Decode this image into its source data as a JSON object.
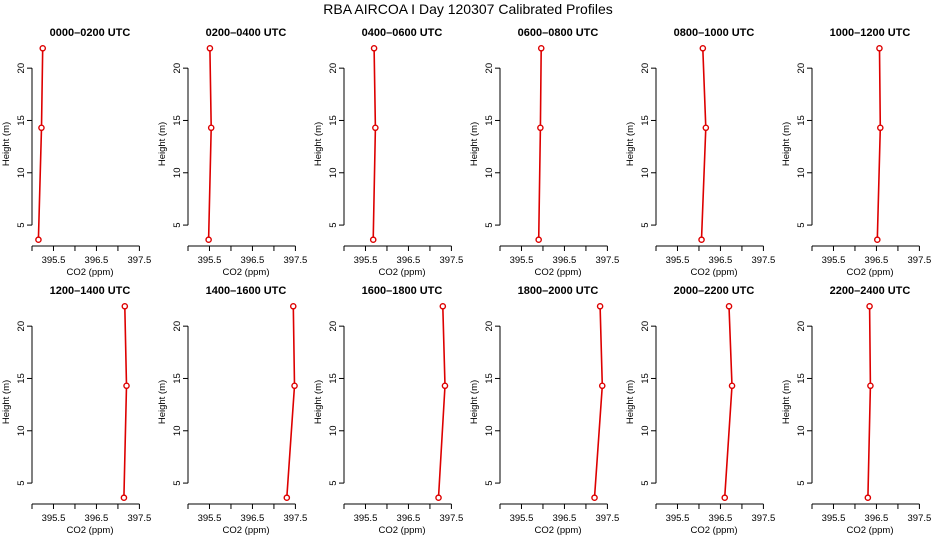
{
  "figure": {
    "title": "RBA AIRCOA I  Day 120307  Calibrated Profiles"
  },
  "chart_data": [
    {
      "type": "line",
      "title": "0000–0200 UTC",
      "xlabel": "CO2 (ppm)",
      "ylabel": "Height (m)",
      "xlim": [
        395.0,
        397.7
      ],
      "ylim": [
        3,
        22.5
      ],
      "xticks": [
        "395.5",
        "396.5",
        "397.5"
      ],
      "yticks": [
        "5",
        "10",
        "15",
        "20"
      ],
      "series": [
        {
          "points": [
            {
              "x": 395.15,
              "y": 3.6
            },
            {
              "x": 395.22,
              "y": 14.3
            },
            {
              "x": 395.25,
              "y": 21.9
            }
          ]
        }
      ]
    },
    {
      "type": "line",
      "title": "0200–0400 UTC",
      "xlabel": "CO2 (ppm)",
      "ylabel": "Height (m)",
      "xlim": [
        395.0,
        397.7
      ],
      "ylim": [
        3,
        22.5
      ],
      "xticks": [
        "395.5",
        "396.5",
        "397.5"
      ],
      "yticks": [
        "5",
        "10",
        "15",
        "20"
      ],
      "series": [
        {
          "points": [
            {
              "x": 395.48,
              "y": 3.6
            },
            {
              "x": 395.54,
              "y": 14.3
            },
            {
              "x": 395.51,
              "y": 21.9
            }
          ]
        }
      ]
    },
    {
      "type": "line",
      "title": "0400–0600 UTC",
      "xlabel": "CO2 (ppm)",
      "ylabel": "Height (m)",
      "xlim": [
        395.0,
        397.7
      ],
      "ylim": [
        3,
        22.5
      ],
      "xticks": [
        "395.5",
        "396.5",
        "397.5"
      ],
      "yticks": [
        "5",
        "10",
        "15",
        "20"
      ],
      "series": [
        {
          "points": [
            {
              "x": 395.68,
              "y": 3.6
            },
            {
              "x": 395.73,
              "y": 14.3
            },
            {
              "x": 395.7,
              "y": 21.9
            }
          ]
        }
      ]
    },
    {
      "type": "line",
      "title": "0600–0800 UTC",
      "xlabel": "CO2 (ppm)",
      "ylabel": "Height (m)",
      "xlim": [
        395.0,
        397.7
      ],
      "ylim": [
        3,
        22.5
      ],
      "xticks": [
        "395.5",
        "396.5",
        "397.5"
      ],
      "yticks": [
        "5",
        "10",
        "15",
        "20"
      ],
      "series": [
        {
          "points": [
            {
              "x": 395.9,
              "y": 3.6
            },
            {
              "x": 395.94,
              "y": 14.3
            },
            {
              "x": 395.96,
              "y": 21.9
            }
          ]
        }
      ]
    },
    {
      "type": "line",
      "title": "0800–1000 UTC",
      "xlabel": "CO2 (ppm)",
      "ylabel": "Height (m)",
      "xlim": [
        395.0,
        397.7
      ],
      "ylim": [
        3,
        22.5
      ],
      "xticks": [
        "395.5",
        "396.5",
        "397.5"
      ],
      "yticks": [
        "5",
        "10",
        "15",
        "20"
      ],
      "series": [
        {
          "points": [
            {
              "x": 396.06,
              "y": 3.6
            },
            {
              "x": 396.16,
              "y": 14.3
            },
            {
              "x": 396.09,
              "y": 21.9
            }
          ]
        }
      ]
    },
    {
      "type": "line",
      "title": "1000–1200 UTC",
      "xlabel": "CO2 (ppm)",
      "ylabel": "Height (m)",
      "xlim": [
        395.0,
        397.7
      ],
      "ylim": [
        3,
        22.5
      ],
      "xticks": [
        "395.5",
        "396.5",
        "397.5"
      ],
      "yticks": [
        "5",
        "10",
        "15",
        "20"
      ],
      "series": [
        {
          "points": [
            {
              "x": 396.52,
              "y": 3.6
            },
            {
              "x": 396.59,
              "y": 14.3
            },
            {
              "x": 396.57,
              "y": 21.9
            }
          ]
        }
      ]
    },
    {
      "type": "line",
      "title": "1200–1400 UTC",
      "xlabel": "CO2 (ppm)",
      "ylabel": "Height (m)",
      "xlim": [
        395.0,
        397.7
      ],
      "ylim": [
        3,
        22.5
      ],
      "xticks": [
        "395.5",
        "396.5",
        "397.5"
      ],
      "yticks": [
        "5",
        "10",
        "15",
        "20"
      ],
      "series": [
        {
          "points": [
            {
              "x": 397.14,
              "y": 3.6
            },
            {
              "x": 397.2,
              "y": 14.3
            },
            {
              "x": 397.16,
              "y": 21.9
            }
          ]
        }
      ]
    },
    {
      "type": "line",
      "title": "1400–1600 UTC",
      "xlabel": "CO2 (ppm)",
      "ylabel": "Height (m)",
      "xlim": [
        395.0,
        397.7
      ],
      "ylim": [
        3,
        22.5
      ],
      "xticks": [
        "395.5",
        "396.5",
        "397.5"
      ],
      "yticks": [
        "5",
        "10",
        "15",
        "20"
      ],
      "series": [
        {
          "points": [
            {
              "x": 397.3,
              "y": 3.6
            },
            {
              "x": 397.48,
              "y": 14.3
            },
            {
              "x": 397.45,
              "y": 21.9
            }
          ]
        }
      ]
    },
    {
      "type": "line",
      "title": "1600–1800 UTC",
      "xlabel": "CO2 (ppm)",
      "ylabel": "Height (m)",
      "xlim": [
        395.0,
        397.7
      ],
      "ylim": [
        3,
        22.5
      ],
      "xticks": [
        "395.5",
        "396.5",
        "397.5"
      ],
      "yticks": [
        "5",
        "10",
        "15",
        "20"
      ],
      "series": [
        {
          "points": [
            {
              "x": 397.2,
              "y": 3.6
            },
            {
              "x": 397.35,
              "y": 14.3
            },
            {
              "x": 397.3,
              "y": 21.9
            }
          ]
        }
      ]
    },
    {
      "type": "line",
      "title": "1800–2000 UTC",
      "xlabel": "CO2 (ppm)",
      "ylabel": "Height (m)",
      "xlim": [
        395.0,
        397.7
      ],
      "ylim": [
        3,
        22.5
      ],
      "xticks": [
        "395.5",
        "396.5",
        "397.5"
      ],
      "yticks": [
        "5",
        "10",
        "15",
        "20"
      ],
      "series": [
        {
          "points": [
            {
              "x": 397.2,
              "y": 3.6
            },
            {
              "x": 397.38,
              "y": 14.3
            },
            {
              "x": 397.33,
              "y": 21.9
            }
          ]
        }
      ]
    },
    {
      "type": "line",
      "title": "2000–2200 UTC",
      "xlabel": "CO2 (ppm)",
      "ylabel": "Height (m)",
      "xlim": [
        395.0,
        397.7
      ],
      "ylim": [
        3,
        22.5
      ],
      "xticks": [
        "395.5",
        "396.5",
        "397.5"
      ],
      "yticks": [
        "5",
        "10",
        "15",
        "20"
      ],
      "series": [
        {
          "points": [
            {
              "x": 396.6,
              "y": 3.6
            },
            {
              "x": 396.77,
              "y": 14.3
            },
            {
              "x": 396.7,
              "y": 21.9
            }
          ]
        }
      ]
    },
    {
      "type": "line",
      "title": "2200–2400 UTC",
      "xlabel": "CO2 (ppm)",
      "ylabel": "Height (m)",
      "xlim": [
        395.0,
        397.7
      ],
      "ylim": [
        3,
        22.5
      ],
      "xticks": [
        "395.5",
        "396.5",
        "397.5"
      ],
      "yticks": [
        "5",
        "10",
        "15",
        "20"
      ],
      "series": [
        {
          "points": [
            {
              "x": 396.3,
              "y": 3.6
            },
            {
              "x": 396.36,
              "y": 14.3
            },
            {
              "x": 396.34,
              "y": 21.9
            }
          ]
        }
      ]
    }
  ]
}
